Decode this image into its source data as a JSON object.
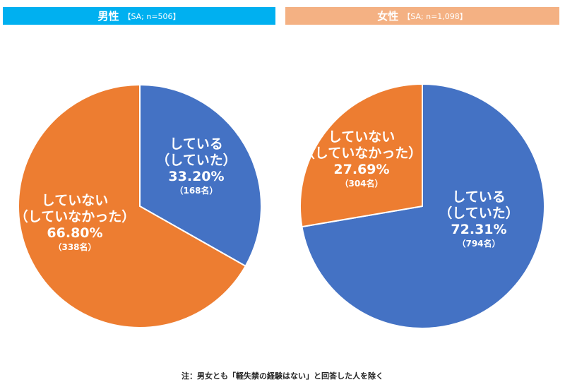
{
  "colors": {
    "blue": "#4472c4",
    "orange": "#ed7d31",
    "white": "#ffffff"
  },
  "chart_data": [
    {
      "type": "pie",
      "title": "男性",
      "subtitle": "【SA; n=506】",
      "slices": [
        {
          "lines": [
            "している",
            "（していた）"
          ],
          "value": 33.2,
          "percent_label": "33.20%",
          "count_label": "（168名）",
          "color": "#4472c4"
        },
        {
          "lines": [
            "していない",
            "（していなかった）"
          ],
          "value": 66.8,
          "percent_label": "66.80%",
          "count_label": "（338名）",
          "color": "#ed7d31"
        }
      ]
    },
    {
      "type": "pie",
      "title": "女性",
      "subtitle": "【SA; n=1,098】",
      "slices": [
        {
          "lines": [
            "している",
            "（していた）"
          ],
          "value": 72.31,
          "percent_label": "72.31%",
          "count_label": "（794名）",
          "color": "#4472c4"
        },
        {
          "lines": [
            "していない",
            "（していなかった）"
          ],
          "value": 27.69,
          "percent_label": "27.69%",
          "count_label": "（304名）",
          "color": "#ed7d31"
        }
      ]
    }
  ],
  "footnote": "注：男女とも「軽失禁の経験はない」と回答した人を除く"
}
